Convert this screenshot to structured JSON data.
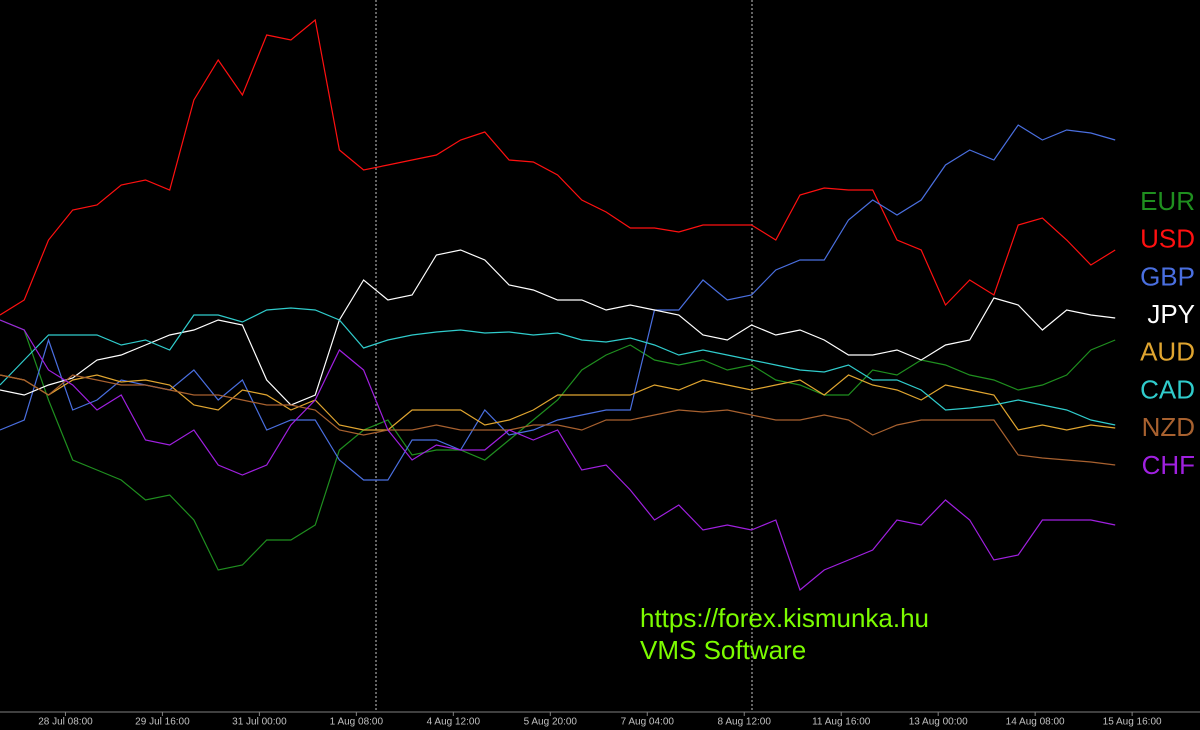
{
  "chart_data": {
    "type": "line",
    "x": [
      0,
      1,
      2,
      3,
      4,
      5,
      6,
      7,
      8,
      9,
      10,
      11,
      12,
      13,
      14,
      15,
      16,
      17,
      18,
      19,
      20,
      21,
      22,
      23,
      24,
      25,
      26,
      27,
      28,
      29,
      30,
      31,
      32,
      33,
      34,
      35,
      36,
      37,
      38,
      39,
      40,
      41,
      42,
      43,
      44,
      45,
      46
    ],
    "xlim": [
      0,
      49.5
    ],
    "xticks": [
      {
        "value": 2.7,
        "label": "28 Jul 08:00"
      },
      {
        "value": 6.7,
        "label": "29 Jul 16:00"
      },
      {
        "value": 10.7,
        "label": "31 Jul 00:00"
      },
      {
        "value": 14.7,
        "label": "1 Aug 08:00"
      },
      {
        "value": 18.7,
        "label": "4 Aug 12:00"
      },
      {
        "value": 22.7,
        "label": "5 Aug 20:00"
      },
      {
        "value": 26.7,
        "label": "7 Aug 04:00"
      },
      {
        "value": 30.7,
        "label": "8 Aug 12:00"
      },
      {
        "value": 34.7,
        "label": "11 Aug 16:00"
      },
      {
        "value": 38.7,
        "label": "13 Aug 00:00"
      },
      {
        "value": 42.7,
        "label": "14 Aug 08:00"
      },
      {
        "value": 46.7,
        "label": "15 Aug 16:00"
      }
    ],
    "ylim": [
      712,
      0
    ],
    "legend": "right",
    "annotations": [
      "https://forex.kismunka.hu",
      "VMS Software"
    ],
    "series": [
      {
        "name": "EUR",
        "color": "#1f8f1f",
        "values": [
          320,
          330,
          400,
          460,
          470,
          480,
          500,
          495,
          520,
          570,
          565,
          540,
          540,
          525,
          450,
          430,
          420,
          455,
          450,
          450,
          460,
          440,
          420,
          400,
          370,
          355,
          345,
          360,
          365,
          360,
          370,
          365,
          380,
          385,
          395,
          395,
          370,
          375,
          360,
          365,
          375,
          380,
          390,
          385,
          375,
          350,
          340
        ]
      },
      {
        "name": "USD",
        "color": "#ff1010",
        "values": [
          315,
          300,
          240,
          210,
          205,
          185,
          180,
          190,
          100,
          60,
          95,
          35,
          40,
          20,
          150,
          170,
          165,
          160,
          155,
          140,
          132,
          160,
          162,
          175,
          200,
          212,
          228,
          228,
          232,
          225,
          225,
          225,
          240,
          195,
          188,
          190,
          190,
          240,
          250,
          305,
          280,
          295,
          225,
          218,
          240,
          265,
          250
        ]
      },
      {
        "name": "GBP",
        "color": "#4a6fe0",
        "values": [
          430,
          420,
          340,
          410,
          400,
          380,
          385,
          390,
          370,
          400,
          380,
          430,
          420,
          420,
          460,
          480,
          480,
          440,
          440,
          450,
          410,
          435,
          430,
          420,
          415,
          410,
          410,
          310,
          310,
          280,
          300,
          295,
          270,
          260,
          260,
          220,
          200,
          215,
          200,
          165,
          150,
          160,
          125,
          140,
          130,
          133,
          140
        ]
      },
      {
        "name": "JPY",
        "color": "#ffffff",
        "values": [
          390,
          395,
          385,
          378,
          360,
          355,
          345,
          335,
          330,
          320,
          325,
          380,
          405,
          395,
          320,
          280,
          300,
          295,
          255,
          250,
          260,
          285,
          290,
          300,
          300,
          310,
          305,
          310,
          315,
          335,
          340,
          325,
          335,
          330,
          340,
          355,
          355,
          350,
          360,
          345,
          340,
          298,
          305,
          330,
          310,
          315,
          318
        ]
      },
      {
        "name": "AUD",
        "color": "#e0a530",
        "values": [
          375,
          380,
          395,
          380,
          375,
          382,
          380,
          385,
          405,
          410,
          390,
          395,
          410,
          400,
          425,
          430,
          430,
          410,
          410,
          410,
          425,
          420,
          410,
          395,
          395,
          395,
          395,
          385,
          390,
          380,
          385,
          390,
          385,
          380,
          395,
          375,
          385,
          390,
          400,
          385,
          390,
          395,
          430,
          425,
          430,
          425,
          428
        ]
      },
      {
        "name": "CAD",
        "color": "#30cccc",
        "values": [
          385,
          360,
          335,
          335,
          335,
          345,
          340,
          350,
          315,
          315,
          322,
          310,
          308,
          310,
          320,
          348,
          340,
          335,
          332,
          330,
          333,
          332,
          335,
          333,
          340,
          342,
          338,
          345,
          355,
          350,
          355,
          360,
          365,
          370,
          372,
          365,
          380,
          380,
          390,
          410,
          408,
          405,
          400,
          405,
          410,
          420,
          425
        ]
      },
      {
        "name": "NZD",
        "color": "#a8612f",
        "values": [
          375,
          380,
          395,
          375,
          380,
          385,
          385,
          390,
          395,
          395,
          400,
          405,
          405,
          410,
          430,
          435,
          430,
          430,
          425,
          430,
          430,
          430,
          425,
          425,
          430,
          420,
          420,
          415,
          410,
          412,
          410,
          415,
          420,
          420,
          415,
          420,
          435,
          425,
          420,
          420,
          420,
          420,
          455,
          458,
          460,
          462,
          465
        ]
      },
      {
        "name": "CHF",
        "color": "#a020e0",
        "values": [
          320,
          330,
          370,
          385,
          410,
          395,
          440,
          445,
          430,
          465,
          475,
          465,
          425,
          400,
          350,
          370,
          430,
          460,
          445,
          450,
          450,
          430,
          440,
          430,
          470,
          465,
          490,
          520,
          505,
          530,
          525,
          530,
          520,
          590,
          570,
          560,
          550,
          520,
          525,
          500,
          520,
          560,
          555,
          520,
          520,
          520,
          525
        ]
      }
    ]
  }
}
